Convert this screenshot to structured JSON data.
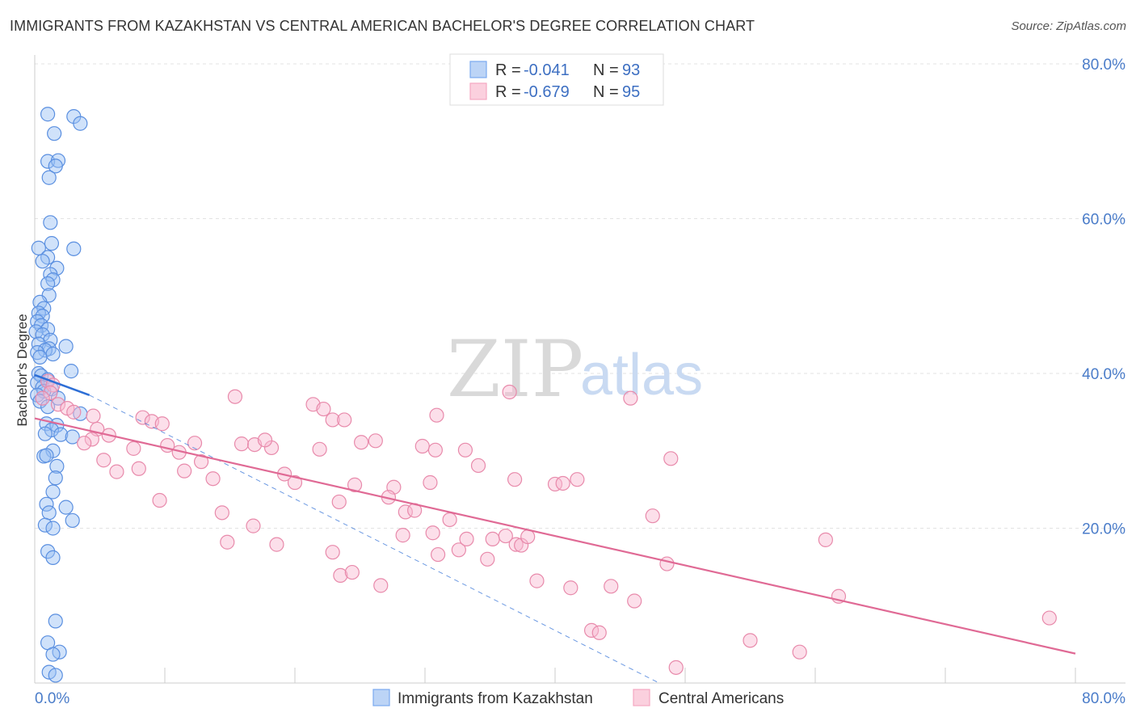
{
  "chart_data": {
    "type": "scatter",
    "title": "IMMIGRANTS FROM KAZAKHSTAN VS CENTRAL AMERICAN BACHELOR'S DEGREE CORRELATION CHART",
    "source": "Source: ZipAtlas.com",
    "ylabel": "Bachelor's Degree",
    "xlim": [
      0,
      80
    ],
    "ylim": [
      0,
      80
    ],
    "x_tick_labels": [
      "0.0%",
      "80.0%"
    ],
    "y_ticks": [
      {
        "value": 20,
        "label": "20.0%"
      },
      {
        "value": 40,
        "label": "40.0%"
      },
      {
        "value": 60,
        "label": "60.0%"
      },
      {
        "value": 80,
        "label": "80.0%"
      }
    ],
    "watermark": {
      "part1": "ZIP",
      "part2": "atlas"
    },
    "legend": [
      {
        "r_label": "R =",
        "r_value": "-0.041",
        "n_label": "N =",
        "n_value": "93"
      },
      {
        "r_label": "R =",
        "r_value": "-0.679",
        "n_label": "N =",
        "n_value": "95"
      }
    ],
    "series": [
      {
        "name": "Immigrants from Kazakhstan",
        "color": "#7aaaf0",
        "stroke": "#5a8fe0",
        "line_color": "#2e6fd6",
        "trend": {
          "x0": 0,
          "y0": 39.8,
          "x1": 4.2,
          "y1": 37.2,
          "dash_x1": 48,
          "dash_y1": 0
        },
        "points": [
          [
            1.0,
            73.5
          ],
          [
            3.0,
            73.2
          ],
          [
            3.5,
            72.3
          ],
          [
            1.5,
            71.0
          ],
          [
            1.0,
            67.4
          ],
          [
            1.8,
            67.5
          ],
          [
            1.6,
            66.8
          ],
          [
            1.1,
            65.3
          ],
          [
            1.2,
            59.5
          ],
          [
            1.3,
            56.8
          ],
          [
            3.0,
            56.1
          ],
          [
            0.3,
            56.2
          ],
          [
            1.0,
            55.0
          ],
          [
            0.6,
            54.5
          ],
          [
            1.7,
            53.6
          ],
          [
            1.2,
            52.8
          ],
          [
            1.4,
            52.1
          ],
          [
            1.0,
            51.6
          ],
          [
            1.1,
            50.1
          ],
          [
            0.4,
            49.2
          ],
          [
            0.7,
            48.4
          ],
          [
            0.3,
            47.8
          ],
          [
            0.6,
            47.4
          ],
          [
            0.2,
            46.7
          ],
          [
            0.5,
            46.2
          ],
          [
            1.0,
            45.7
          ],
          [
            0.1,
            45.4
          ],
          [
            0.6,
            45.0
          ],
          [
            1.2,
            44.3
          ],
          [
            0.3,
            43.8
          ],
          [
            2.4,
            43.5
          ],
          [
            1.1,
            43.2
          ],
          [
            0.8,
            43.0
          ],
          [
            0.2,
            42.7
          ],
          [
            1.4,
            42.5
          ],
          [
            0.4,
            42.1
          ],
          [
            2.8,
            40.3
          ],
          [
            0.3,
            40.0
          ],
          [
            0.5,
            39.7
          ],
          [
            1.0,
            39.2
          ],
          [
            0.2,
            38.8
          ],
          [
            0.6,
            38.2
          ],
          [
            1.3,
            38.0
          ],
          [
            0.7,
            37.7
          ],
          [
            0.2,
            37.2
          ],
          [
            1.8,
            36.8
          ],
          [
            0.4,
            36.4
          ],
          [
            1.0,
            35.7
          ],
          [
            3.5,
            34.8
          ],
          [
            0.9,
            33.5
          ],
          [
            1.7,
            33.3
          ],
          [
            1.3,
            32.7
          ],
          [
            0.8,
            32.2
          ],
          [
            2.0,
            32.1
          ],
          [
            2.9,
            31.8
          ],
          [
            1.4,
            30.0
          ],
          [
            0.7,
            29.3
          ],
          [
            0.9,
            29.4
          ],
          [
            1.7,
            28.0
          ],
          [
            1.6,
            26.5
          ],
          [
            1.4,
            24.7
          ],
          [
            0.9,
            23.1
          ],
          [
            2.4,
            22.7
          ],
          [
            1.1,
            22.0
          ],
          [
            2.9,
            21.0
          ],
          [
            0.8,
            20.4
          ],
          [
            1.4,
            20.0
          ],
          [
            1.0,
            17.0
          ],
          [
            1.4,
            16.2
          ],
          [
            1.6,
            8.0
          ],
          [
            1.0,
            5.2
          ],
          [
            1.9,
            4.0
          ],
          [
            1.4,
            3.7
          ],
          [
            1.1,
            1.4
          ],
          [
            1.6,
            1.0
          ]
        ]
      },
      {
        "name": "Central Americans",
        "color": "#f5a8c2",
        "stroke": "#e88aab",
        "line_color": "#e06a95",
        "trend": {
          "x0": 0,
          "y0": 34.2,
          "x1": 80,
          "y1": 3.8
        },
        "points": [
          [
            1.0,
            39.0
          ],
          [
            1.4,
            38.5
          ],
          [
            1.2,
            37.5
          ],
          [
            0.6,
            36.8
          ],
          [
            1.8,
            36.0
          ],
          [
            2.5,
            35.5
          ],
          [
            3.0,
            35.0
          ],
          [
            4.5,
            34.5
          ],
          [
            8.3,
            34.3
          ],
          [
            9.0,
            33.8
          ],
          [
            9.8,
            33.5
          ],
          [
            4.8,
            32.8
          ],
          [
            5.7,
            32.0
          ],
          [
            4.4,
            31.5
          ],
          [
            12.3,
            31.0
          ],
          [
            3.8,
            31.0
          ],
          [
            10.2,
            30.7
          ],
          [
            7.6,
            30.3
          ],
          [
            11.1,
            29.8
          ],
          [
            5.3,
            28.8
          ],
          [
            12.8,
            28.6
          ],
          [
            8.0,
            27.7
          ],
          [
            11.5,
            27.4
          ],
          [
            6.3,
            27.3
          ],
          [
            13.7,
            26.4
          ],
          [
            9.6,
            23.6
          ],
          [
            14.4,
            22.0
          ],
          [
            14.8,
            18.2
          ],
          [
            15.9,
            30.9
          ],
          [
            16.9,
            30.8
          ],
          [
            18.2,
            30.4
          ],
          [
            17.7,
            31.4
          ],
          [
            15.4,
            37.0
          ],
          [
            19.2,
            27.0
          ],
          [
            20.0,
            25.9
          ],
          [
            16.8,
            20.3
          ],
          [
            18.6,
            17.9
          ],
          [
            21.4,
            36.0
          ],
          [
            22.2,
            35.4
          ],
          [
            22.9,
            34.0
          ],
          [
            23.8,
            34.0
          ],
          [
            21.9,
            30.2
          ],
          [
            23.4,
            23.4
          ],
          [
            22.9,
            16.9
          ],
          [
            23.5,
            13.9
          ],
          [
            24.4,
            14.3
          ],
          [
            25.1,
            31.1
          ],
          [
            24.6,
            25.6
          ],
          [
            26.2,
            31.3
          ],
          [
            26.6,
            12.6
          ],
          [
            27.6,
            25.3
          ],
          [
            27.2,
            24.0
          ],
          [
            28.5,
            22.1
          ],
          [
            29.2,
            22.3
          ],
          [
            28.3,
            19.1
          ],
          [
            29.8,
            30.6
          ],
          [
            30.8,
            30.1
          ],
          [
            30.4,
            25.9
          ],
          [
            30.9,
            34.6
          ],
          [
            30.6,
            19.4
          ],
          [
            31.9,
            21.1
          ],
          [
            31.0,
            16.6
          ],
          [
            32.6,
            17.2
          ],
          [
            33.1,
            30.1
          ],
          [
            34.1,
            28.1
          ],
          [
            33.2,
            18.6
          ],
          [
            34.8,
            16.0
          ],
          [
            35.2,
            18.6
          ],
          [
            36.5,
            37.6
          ],
          [
            36.2,
            19.0
          ],
          [
            37.0,
            17.9
          ],
          [
            37.4,
            17.8
          ],
          [
            37.9,
            18.9
          ],
          [
            36.9,
            26.3
          ],
          [
            38.6,
            13.2
          ],
          [
            40.0,
            25.7
          ],
          [
            40.6,
            25.8
          ],
          [
            41.2,
            12.3
          ],
          [
            41.7,
            26.3
          ],
          [
            42.8,
            6.8
          ],
          [
            43.4,
            6.5
          ],
          [
            44.3,
            12.5
          ],
          [
            45.8,
            36.8
          ],
          [
            46.1,
            10.6
          ],
          [
            47.5,
            21.6
          ],
          [
            48.6,
            15.4
          ],
          [
            48.9,
            29.0
          ],
          [
            49.3,
            2.0
          ],
          [
            55.0,
            5.5
          ],
          [
            58.8,
            4.0
          ],
          [
            60.8,
            18.5
          ],
          [
            61.8,
            11.2
          ],
          [
            78.0,
            8.4
          ]
        ]
      }
    ]
  }
}
